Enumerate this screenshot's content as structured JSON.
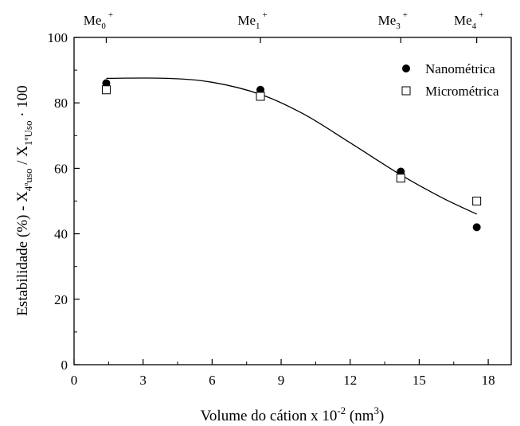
{
  "chart_data": {
    "type": "scatter",
    "xlabel_main": "Volume do cátion x 10",
    "xlabel_exp": "-2",
    "xlabel_unit_open": " (nm",
    "xlabel_unit_exp": "3",
    "xlabel_unit_close": ")",
    "ylabel_parts": {
      "a": "Estabilidade (%) - X",
      "a_sub": "4ºuso",
      "b": " / X",
      "b_sub": "1ºUso",
      "c": " · 100"
    },
    "xlim": [
      0,
      19
    ],
    "ylim": [
      0,
      100
    ],
    "x_ticks": [
      0,
      3,
      6,
      9,
      12,
      15,
      18
    ],
    "y_ticks": [
      0,
      20,
      40,
      60,
      80,
      100
    ],
    "top_axis_labels": [
      {
        "base": "Me",
        "sub": "0",
        "sup": "+",
        "x": 1.4
      },
      {
        "base": "Me",
        "sub": "1",
        "sup": "+",
        "x": 8.1
      },
      {
        "base": "Me",
        "sub": "3",
        "sup": "+",
        "x": 14.2
      },
      {
        "base": "Me",
        "sub": "4",
        "sup": "+",
        "x": 17.5
      }
    ],
    "series": [
      {
        "name": "Nanométrica",
        "marker": "filled-circle",
        "x": [
          1.4,
          8.1,
          14.2,
          17.5
        ],
        "y": [
          86,
          84,
          59,
          42
        ]
      },
      {
        "name": "Micrométrica",
        "marker": "open-square",
        "x": [
          1.4,
          8.1,
          14.2,
          17.5
        ],
        "y": [
          84,
          82,
          57,
          50
        ]
      }
    ],
    "fit_curve": {
      "x": [
        1.4,
        4,
        6,
        8.1,
        10,
        12,
        14.2,
        16,
        17.5
      ],
      "y": [
        87.5,
        87.5,
        86.3,
        82.6,
        76.5,
        67.8,
        58,
        51,
        46
      ]
    },
    "legend_position": "top-right",
    "grid": false
  }
}
